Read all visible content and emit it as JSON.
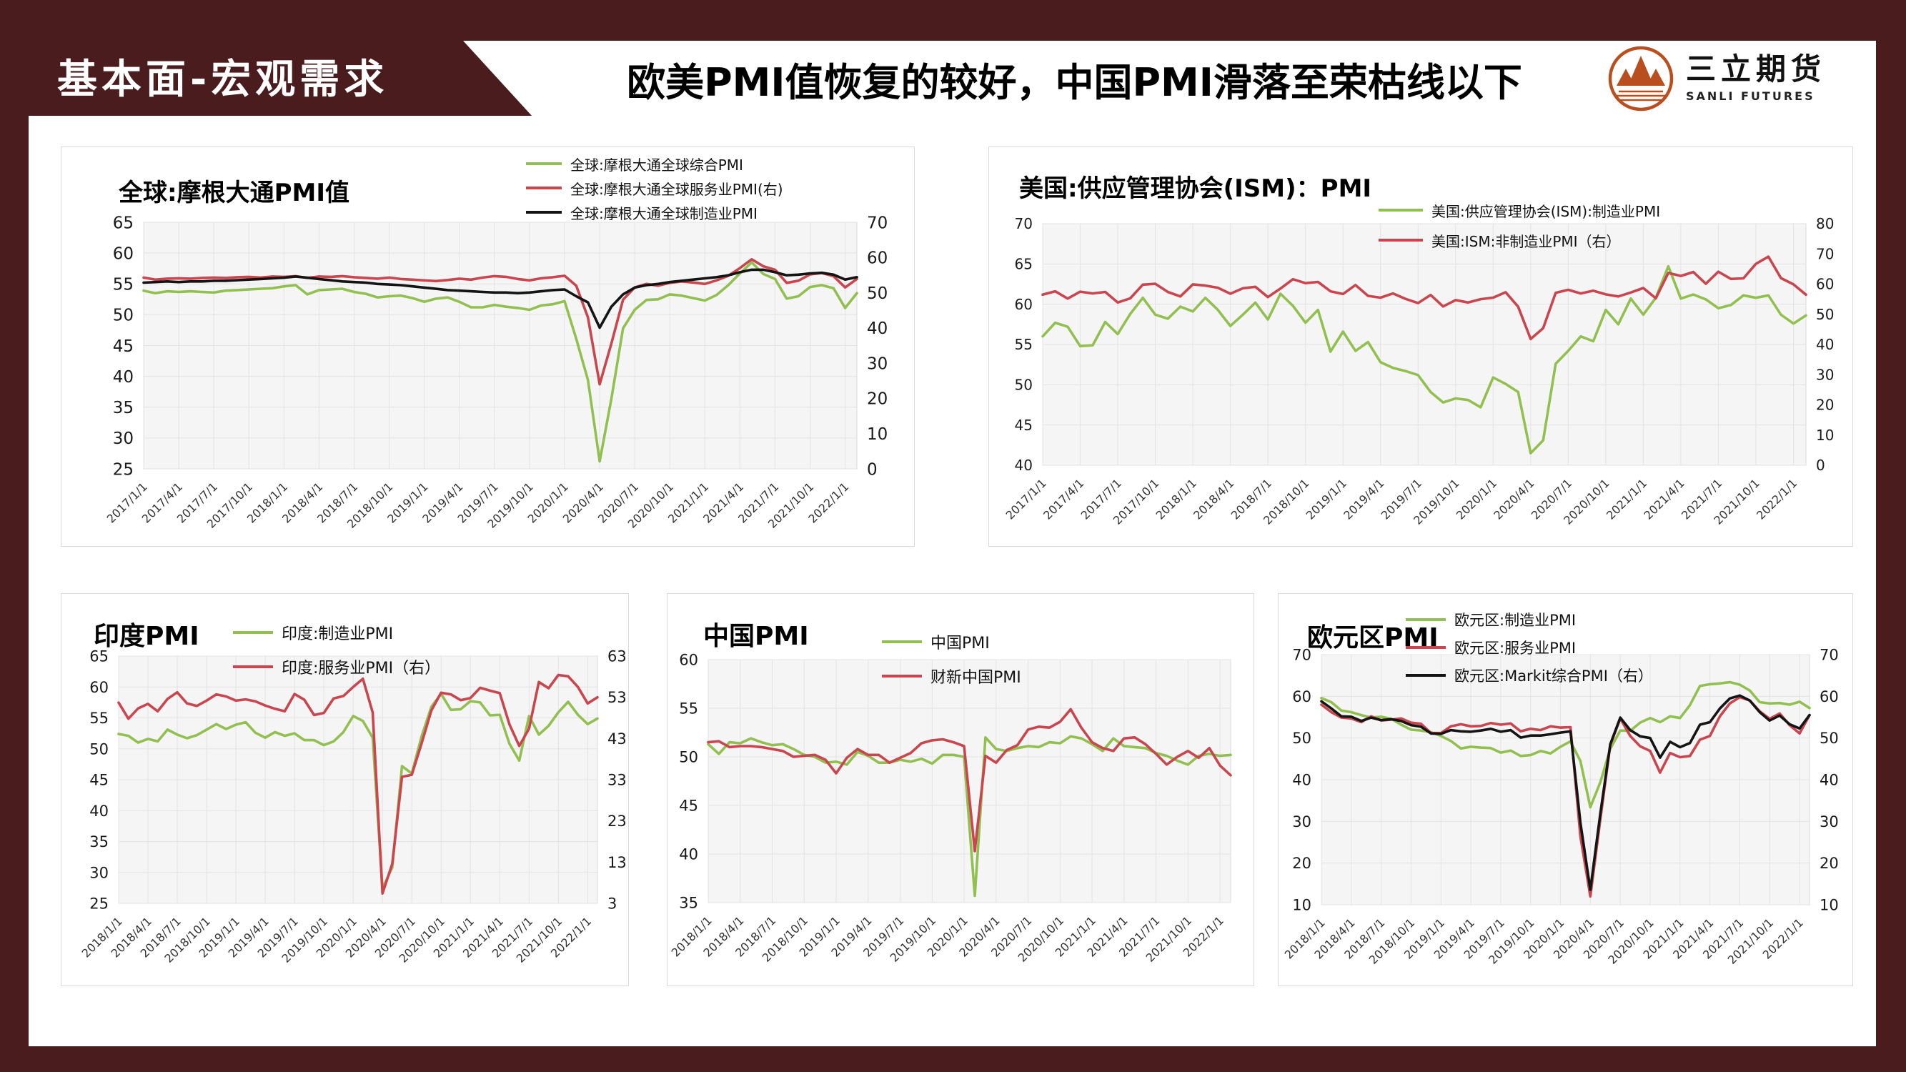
{
  "page": {
    "section_label": "基本面-宏观需求",
    "title": "欧美PMI值恢复的较好，中国PMI滑落至荣枯线以下",
    "logo": {
      "name_cn": "三立期货",
      "name_en": "SANLI FUTURES"
    },
    "colors": {
      "dark_red": "#4a1c1e",
      "green": "#92c050",
      "red": "#c9464e",
      "black": "#141414",
      "plot_bg": "#f5f5f5",
      "grid": "#e3e3e3",
      "panel_border": "#d9d9d9",
      "logo_orange": "#b94f1e"
    }
  },
  "chart_data": [
    {
      "type": "line",
      "title": "全球:摩根大通PMI值",
      "x_tick_labels": [
        "2017/1/1",
        "2017/4/1",
        "2017/7/1",
        "2017/10/1",
        "2018/1/1",
        "2018/4/1",
        "2018/7/1",
        "2018/10/1",
        "2019/1/1",
        "2019/4/1",
        "2019/7/1",
        "2019/10/1",
        "2020/1/1",
        "2020/4/1",
        "2020/7/1",
        "2020/10/1",
        "2021/1/1",
        "2021/4/1",
        "2021/7/1",
        "2021/10/1",
        "2022/1/1"
      ],
      "left_axis": {
        "min": 25,
        "max": 65,
        "step": 5
      },
      "right_axis": {
        "min": 0,
        "max": 70,
        "step": 10
      },
      "series": [
        {
          "name": "全球:摩根大通全球综合PMI",
          "color": "#92c050",
          "axis": "left",
          "values": [
            53.9,
            53.5,
            53.8,
            53.7,
            53.8,
            53.7,
            53.6,
            53.9,
            54.0,
            54.1,
            54.2,
            54.3,
            54.6,
            54.8,
            53.3,
            54.0,
            54.1,
            54.2,
            53.7,
            53.4,
            52.8,
            53.0,
            53.1,
            52.7,
            52.1,
            52.6,
            52.8,
            52.1,
            51.2,
            51.2,
            51.6,
            51.3,
            51.1,
            50.8,
            51.5,
            51.7,
            52.2,
            46.1,
            39.4,
            26.2,
            36.3,
            47.8,
            50.8,
            52.4,
            52.5,
            53.3,
            53.1,
            52.7,
            52.3,
            53.2,
            54.8,
            56.7,
            58.5,
            56.6,
            55.8,
            52.6,
            53.0,
            54.5,
            54.8,
            54.3,
            51.1,
            53.5
          ]
        },
        {
          "name": "全球:摩根大通全球服务业PMI(右)",
          "color": "#c9464e",
          "axis": "right",
          "values": [
            54.3,
            53.7,
            54.0,
            54.1,
            54.0,
            54.2,
            54.3,
            54.2,
            54.4,
            54.5,
            54.3,
            54.6,
            54.5,
            54.7,
            54.2,
            54.6,
            54.5,
            54.7,
            54.4,
            54.2,
            54.0,
            54.3,
            53.9,
            53.7,
            53.5,
            53.3,
            53.6,
            54.0,
            53.7,
            54.3,
            54.7,
            54.5,
            53.9,
            53.5,
            54.1,
            54.4,
            54.8,
            52.0,
            43.0,
            24.0,
            35.5,
            48.0,
            51.5,
            52.5,
            52.0,
            52.8,
            53.2,
            52.9,
            52.5,
            53.5,
            54.8,
            57.0,
            59.5,
            57.5,
            56.5,
            52.8,
            53.4,
            55.2,
            55.6,
            54.7,
            51.5,
            53.9
          ]
        },
        {
          "name": "全球:摩根大通全球制造业PMI",
          "color": "#141414",
          "axis": "left",
          "values": [
            55.2,
            55.3,
            55.4,
            55.3,
            55.4,
            55.4,
            55.5,
            55.5,
            55.6,
            55.7,
            55.8,
            55.9,
            56.0,
            56.2,
            56.0,
            55.8,
            55.6,
            55.4,
            55.3,
            55.2,
            55.0,
            54.9,
            54.8,
            54.6,
            54.4,
            54.2,
            54.0,
            53.9,
            53.8,
            53.7,
            53.6,
            53.6,
            53.5,
            53.6,
            53.8,
            54.0,
            54.1,
            53.0,
            52.0,
            47.9,
            51.3,
            53.3,
            54.4,
            54.8,
            55.0,
            55.3,
            55.5,
            55.7,
            55.9,
            56.1,
            56.4,
            56.9,
            57.3,
            57.3,
            56.9,
            56.4,
            56.5,
            56.7,
            56.8,
            56.5,
            55.7,
            56.1
          ]
        }
      ]
    },
    {
      "type": "line",
      "title": "美国:供应管理协会(ISM)：PMI",
      "x_tick_labels": [
        "2017/1/1",
        "2017/4/1",
        "2017/7/1",
        "2017/10/1",
        "2018/1/1",
        "2018/4/1",
        "2018/7/1",
        "2018/10/1",
        "2019/1/1",
        "2019/4/1",
        "2019/7/1",
        "2019/10/1",
        "2020/1/1",
        "2020/4/1",
        "2020/7/1",
        "2020/10/1",
        "2021/1/1",
        "2021/4/1",
        "2021/7/1",
        "2021/10/1",
        "2022/1/1"
      ],
      "left_axis": {
        "min": 40,
        "max": 70,
        "step": 5
      },
      "right_axis": {
        "min": 0,
        "max": 80,
        "step": 10
      },
      "series": [
        {
          "name": "美国:供应管理协会(ISM):制造业PMI",
          "color": "#92c050",
          "axis": "left",
          "values": [
            56.0,
            57.7,
            57.2,
            54.8,
            54.9,
            57.8,
            56.3,
            58.8,
            60.8,
            58.7,
            58.2,
            59.7,
            59.1,
            60.8,
            59.3,
            57.3,
            58.7,
            60.2,
            58.1,
            61.3,
            59.8,
            57.7,
            59.3,
            54.1,
            56.6,
            54.2,
            55.3,
            52.8,
            52.1,
            51.7,
            51.2,
            49.1,
            47.8,
            48.3,
            48.1,
            47.2,
            50.9,
            50.1,
            49.1,
            41.5,
            43.1,
            52.6,
            54.2,
            56.0,
            55.4,
            59.3,
            57.5,
            60.7,
            58.7,
            60.8,
            64.7,
            60.7,
            61.2,
            60.6,
            59.5,
            59.9,
            61.1,
            60.8,
            61.1,
            58.7,
            57.6,
            58.6
          ]
        },
        {
          "name": "美国:ISM:非制造业PMI（右）",
          "color": "#c9464e",
          "axis": "right",
          "values": [
            56.5,
            57.6,
            55.2,
            57.5,
            56.9,
            57.4,
            53.9,
            55.3,
            59.8,
            60.1,
            57.4,
            55.9,
            59.9,
            59.5,
            58.8,
            56.8,
            58.6,
            59.1,
            55.7,
            58.5,
            61.6,
            60.3,
            60.7,
            57.6,
            56.7,
            59.7,
            56.1,
            55.5,
            56.9,
            55.1,
            53.7,
            56.4,
            52.6,
            54.7,
            53.9,
            55.0,
            55.5,
            57.3,
            52.5,
            41.8,
            45.4,
            57.1,
            58.1,
            56.9,
            57.8,
            56.6,
            55.9,
            57.2,
            58.7,
            55.3,
            63.7,
            62.7,
            64.0,
            60.1,
            64.1,
            61.7,
            61.9,
            66.7,
            69.1,
            62.0,
            59.9,
            56.5
          ]
        }
      ]
    },
    {
      "type": "line",
      "title": "印度PMI",
      "x_tick_labels": [
        "2018/1/1",
        "2018/4/1",
        "2018/7/1",
        "2018/10/1",
        "2019/1/1",
        "2019/4/1",
        "2019/7/1",
        "2019/10/1",
        "2020/1/1",
        "2020/4/1",
        "2020/7/1",
        "2020/10/1",
        "2021/1/1",
        "2021/4/1",
        "2021/7/1",
        "2021/10/1",
        "2022/1/1"
      ],
      "left_axis": {
        "min": 25,
        "max": 65,
        "step": 5
      },
      "right_axis": {
        "min": 3,
        "max": 63,
        "step": 10
      },
      "series": [
        {
          "name": "印度:制造业PMI",
          "color": "#92c050",
          "axis": "left",
          "values": [
            52.4,
            52.1,
            51.0,
            51.6,
            51.2,
            53.1,
            52.3,
            51.7,
            52.2,
            53.1,
            54.0,
            53.2,
            53.9,
            54.3,
            52.6,
            51.8,
            52.7,
            52.1,
            52.5,
            51.4,
            51.4,
            50.6,
            51.2,
            52.7,
            55.3,
            54.5,
            51.8,
            27.4,
            30.8,
            47.2,
            46.0,
            52.0,
            56.8,
            58.9,
            56.3,
            56.4,
            57.7,
            57.5,
            55.4,
            55.5,
            50.8,
            48.1,
            55.3,
            52.3,
            53.7,
            55.9,
            57.6,
            55.5,
            54.0,
            54.9
          ]
        },
        {
          "name": "印度:服务业PMI（右）",
          "color": "#c9464e",
          "axis": "right",
          "values": [
            51.7,
            47.8,
            50.3,
            51.4,
            49.6,
            52.6,
            54.2,
            51.5,
            50.9,
            52.2,
            53.7,
            53.2,
            52.2,
            52.5,
            52.0,
            51.0,
            50.2,
            49.6,
            53.8,
            52.4,
            48.7,
            49.2,
            52.7,
            53.3,
            55.5,
            57.5,
            49.3,
            5.4,
            12.6,
            33.7,
            34.2,
            41.8,
            49.8,
            54.1,
            53.7,
            52.3,
            52.8,
            55.3,
            54.6,
            54.0,
            46.4,
            41.2,
            45.4,
            56.7,
            55.2,
            58.4,
            58.1,
            55.5,
            51.5,
            53.0
          ]
        }
      ]
    },
    {
      "type": "line",
      "title": "中国PMI",
      "x_tick_labels": [
        "2018/1/1",
        "2018/4/1",
        "2018/7/1",
        "2018/10/1",
        "2019/1/1",
        "2019/4/1",
        "2019/7/1",
        "2019/10/1",
        "2020/1/1",
        "2020/4/1",
        "2020/7/1",
        "2020/10/1",
        "2021/1/1",
        "2021/4/1",
        "2021/7/1",
        "2021/10/1",
        "2022/1/1"
      ],
      "left_axis": {
        "min": 35,
        "max": 60,
        "step": 5
      },
      "right_axis": null,
      "series": [
        {
          "name": "中国PMI",
          "color": "#92c050",
          "axis": "left",
          "values": [
            51.3,
            50.3,
            51.5,
            51.4,
            51.9,
            51.5,
            51.2,
            51.3,
            50.8,
            50.2,
            50.0,
            49.4,
            49.5,
            49.2,
            50.5,
            50.1,
            49.4,
            49.4,
            49.7,
            49.5,
            49.8,
            49.3,
            50.2,
            50.2,
            50.0,
            35.7,
            52.0,
            50.8,
            50.6,
            50.9,
            51.1,
            51.0,
            51.5,
            51.4,
            52.1,
            51.9,
            51.3,
            50.6,
            51.9,
            51.1,
            51.0,
            50.9,
            50.4,
            50.1,
            49.6,
            49.2,
            50.1,
            50.3,
            50.1,
            50.2
          ]
        },
        {
          "name": "财新中国PMI",
          "color": "#c9464e",
          "axis": "left",
          "values": [
            51.5,
            51.6,
            51.0,
            51.1,
            51.1,
            51.0,
            50.8,
            50.6,
            50.0,
            50.1,
            50.2,
            49.7,
            48.3,
            49.9,
            50.8,
            50.2,
            50.2,
            49.4,
            49.9,
            50.4,
            51.4,
            51.7,
            51.8,
            51.5,
            51.1,
            40.3,
            50.1,
            49.4,
            50.7,
            51.2,
            52.8,
            53.1,
            53.0,
            53.6,
            54.9,
            53.0,
            51.5,
            50.9,
            50.6,
            51.9,
            52.0,
            51.3,
            50.3,
            49.2,
            50.0,
            50.6,
            49.9,
            50.9,
            49.1,
            48.1
          ]
        }
      ]
    },
    {
      "type": "line",
      "title": "欧元区PMI",
      "x_tick_labels": [
        "2018/1/1",
        "2018/4/1",
        "2018/7/1",
        "2018/10/1",
        "2019/1/1",
        "2019/4/1",
        "2019/7/1",
        "2019/10/1",
        "2020/1/1",
        "2020/4/1",
        "2020/7/1",
        "2020/10/1",
        "2021/1/1",
        "2021/4/1",
        "2021/7/1",
        "2021/10/1",
        "2022/1/1"
      ],
      "left_axis": {
        "min": 10,
        "max": 70,
        "step": 10
      },
      "right_axis": {
        "min": 10,
        "max": 70,
        "step": 10
      },
      "series": [
        {
          "name": "欧元区:制造业PMI",
          "color": "#92c050",
          "axis": "left",
          "values": [
            59.6,
            58.6,
            56.6,
            56.2,
            55.5,
            54.9,
            55.1,
            54.6,
            53.2,
            52.0,
            51.8,
            51.4,
            50.5,
            49.3,
            47.5,
            47.9,
            47.7,
            47.6,
            46.5,
            47.0,
            45.7,
            45.9,
            46.9,
            46.3,
            47.9,
            49.2,
            44.5,
            33.4,
            39.4,
            47.4,
            51.8,
            51.7,
            53.7,
            54.8,
            53.8,
            55.2,
            54.8,
            57.9,
            62.5,
            62.9,
            63.1,
            63.4,
            62.8,
            61.4,
            58.6,
            58.3,
            58.4,
            58.0,
            58.7,
            57.2
          ]
        },
        {
          "name": "欧元区:服务业PMI",
          "color": "#c9464e",
          "axis": "left",
          "values": [
            58.0,
            56.2,
            54.9,
            54.7,
            53.8,
            55.2,
            54.2,
            54.4,
            54.7,
            53.7,
            53.4,
            51.2,
            51.2,
            52.8,
            53.3,
            52.8,
            52.9,
            53.6,
            53.2,
            53.5,
            51.6,
            52.2,
            51.9,
            52.8,
            52.5,
            52.6,
            26.4,
            12.0,
            30.5,
            48.3,
            54.7,
            50.5,
            48.0,
            46.9,
            41.7,
            46.4,
            45.4,
            45.7,
            49.6,
            50.5,
            55.2,
            58.3,
            59.8,
            59.0,
            56.4,
            54.6,
            55.9,
            53.1,
            51.1,
            55.5
          ]
        },
        {
          "name": "欧元区:Markit综合PMI（右）",
          "color": "#141414",
          "axis": "right",
          "values": [
            58.8,
            57.1,
            55.2,
            55.1,
            54.1,
            54.9,
            54.3,
            54.5,
            54.1,
            53.1,
            52.7,
            51.1,
            51.0,
            51.9,
            51.6,
            51.5,
            51.8,
            52.2,
            51.5,
            51.9,
            50.1,
            50.6,
            50.6,
            50.9,
            51.3,
            51.6,
            29.7,
            13.6,
            31.9,
            48.5,
            54.9,
            51.9,
            50.4,
            50.0,
            45.3,
            49.1,
            47.8,
            48.8,
            53.2,
            53.8,
            57.1,
            59.5,
            60.2,
            59.0,
            56.2,
            54.2,
            55.4,
            53.3,
            52.3,
            55.5
          ]
        }
      ]
    }
  ]
}
